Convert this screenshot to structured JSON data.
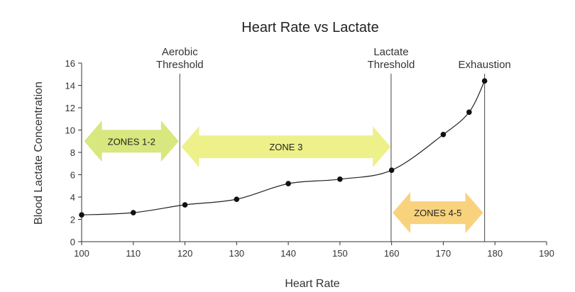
{
  "chart_data": {
    "type": "line",
    "title": "Heart Rate vs Lactate",
    "xlabel": "Heart Rate",
    "ylabel": "Blood Lactate Concentration",
    "xlim": [
      100,
      190
    ],
    "ylim": [
      0,
      16
    ],
    "xticks": [
      100,
      110,
      120,
      130,
      140,
      150,
      160,
      170,
      180,
      190
    ],
    "yticks": [
      0,
      2,
      4,
      6,
      8,
      10,
      12,
      14,
      16
    ],
    "x": [
      100,
      110,
      120,
      130,
      140,
      150,
      160,
      170,
      175,
      178
    ],
    "y": [
      2.4,
      2.6,
      3.3,
      3.8,
      5.2,
      5.6,
      6.4,
      9.6,
      11.6,
      14.4
    ],
    "thresholds": [
      {
        "x": 119,
        "label_lines": [
          "Aerobic",
          "Threshold"
        ]
      },
      {
        "x": 159.9,
        "label_lines": [
          "Lactate",
          "Threshold"
        ]
      },
      {
        "x": 178,
        "label_lines": [
          "Exhaustion"
        ]
      }
    ],
    "zones": [
      {
        "label": "ZONES 1-2",
        "x_start": 100.5,
        "x_end": 118.8,
        "y_center": 9.0,
        "color": "#d8e77e"
      },
      {
        "label": "ZONE 3",
        "x_start": 119.3,
        "x_end": 159.8,
        "y_center": 8.5,
        "color": "#eef08a"
      },
      {
        "label": "ZONES 4-5",
        "x_start": 160.2,
        "x_end": 177.7,
        "y_center": 2.6,
        "color": "#f9d27e"
      }
    ]
  }
}
